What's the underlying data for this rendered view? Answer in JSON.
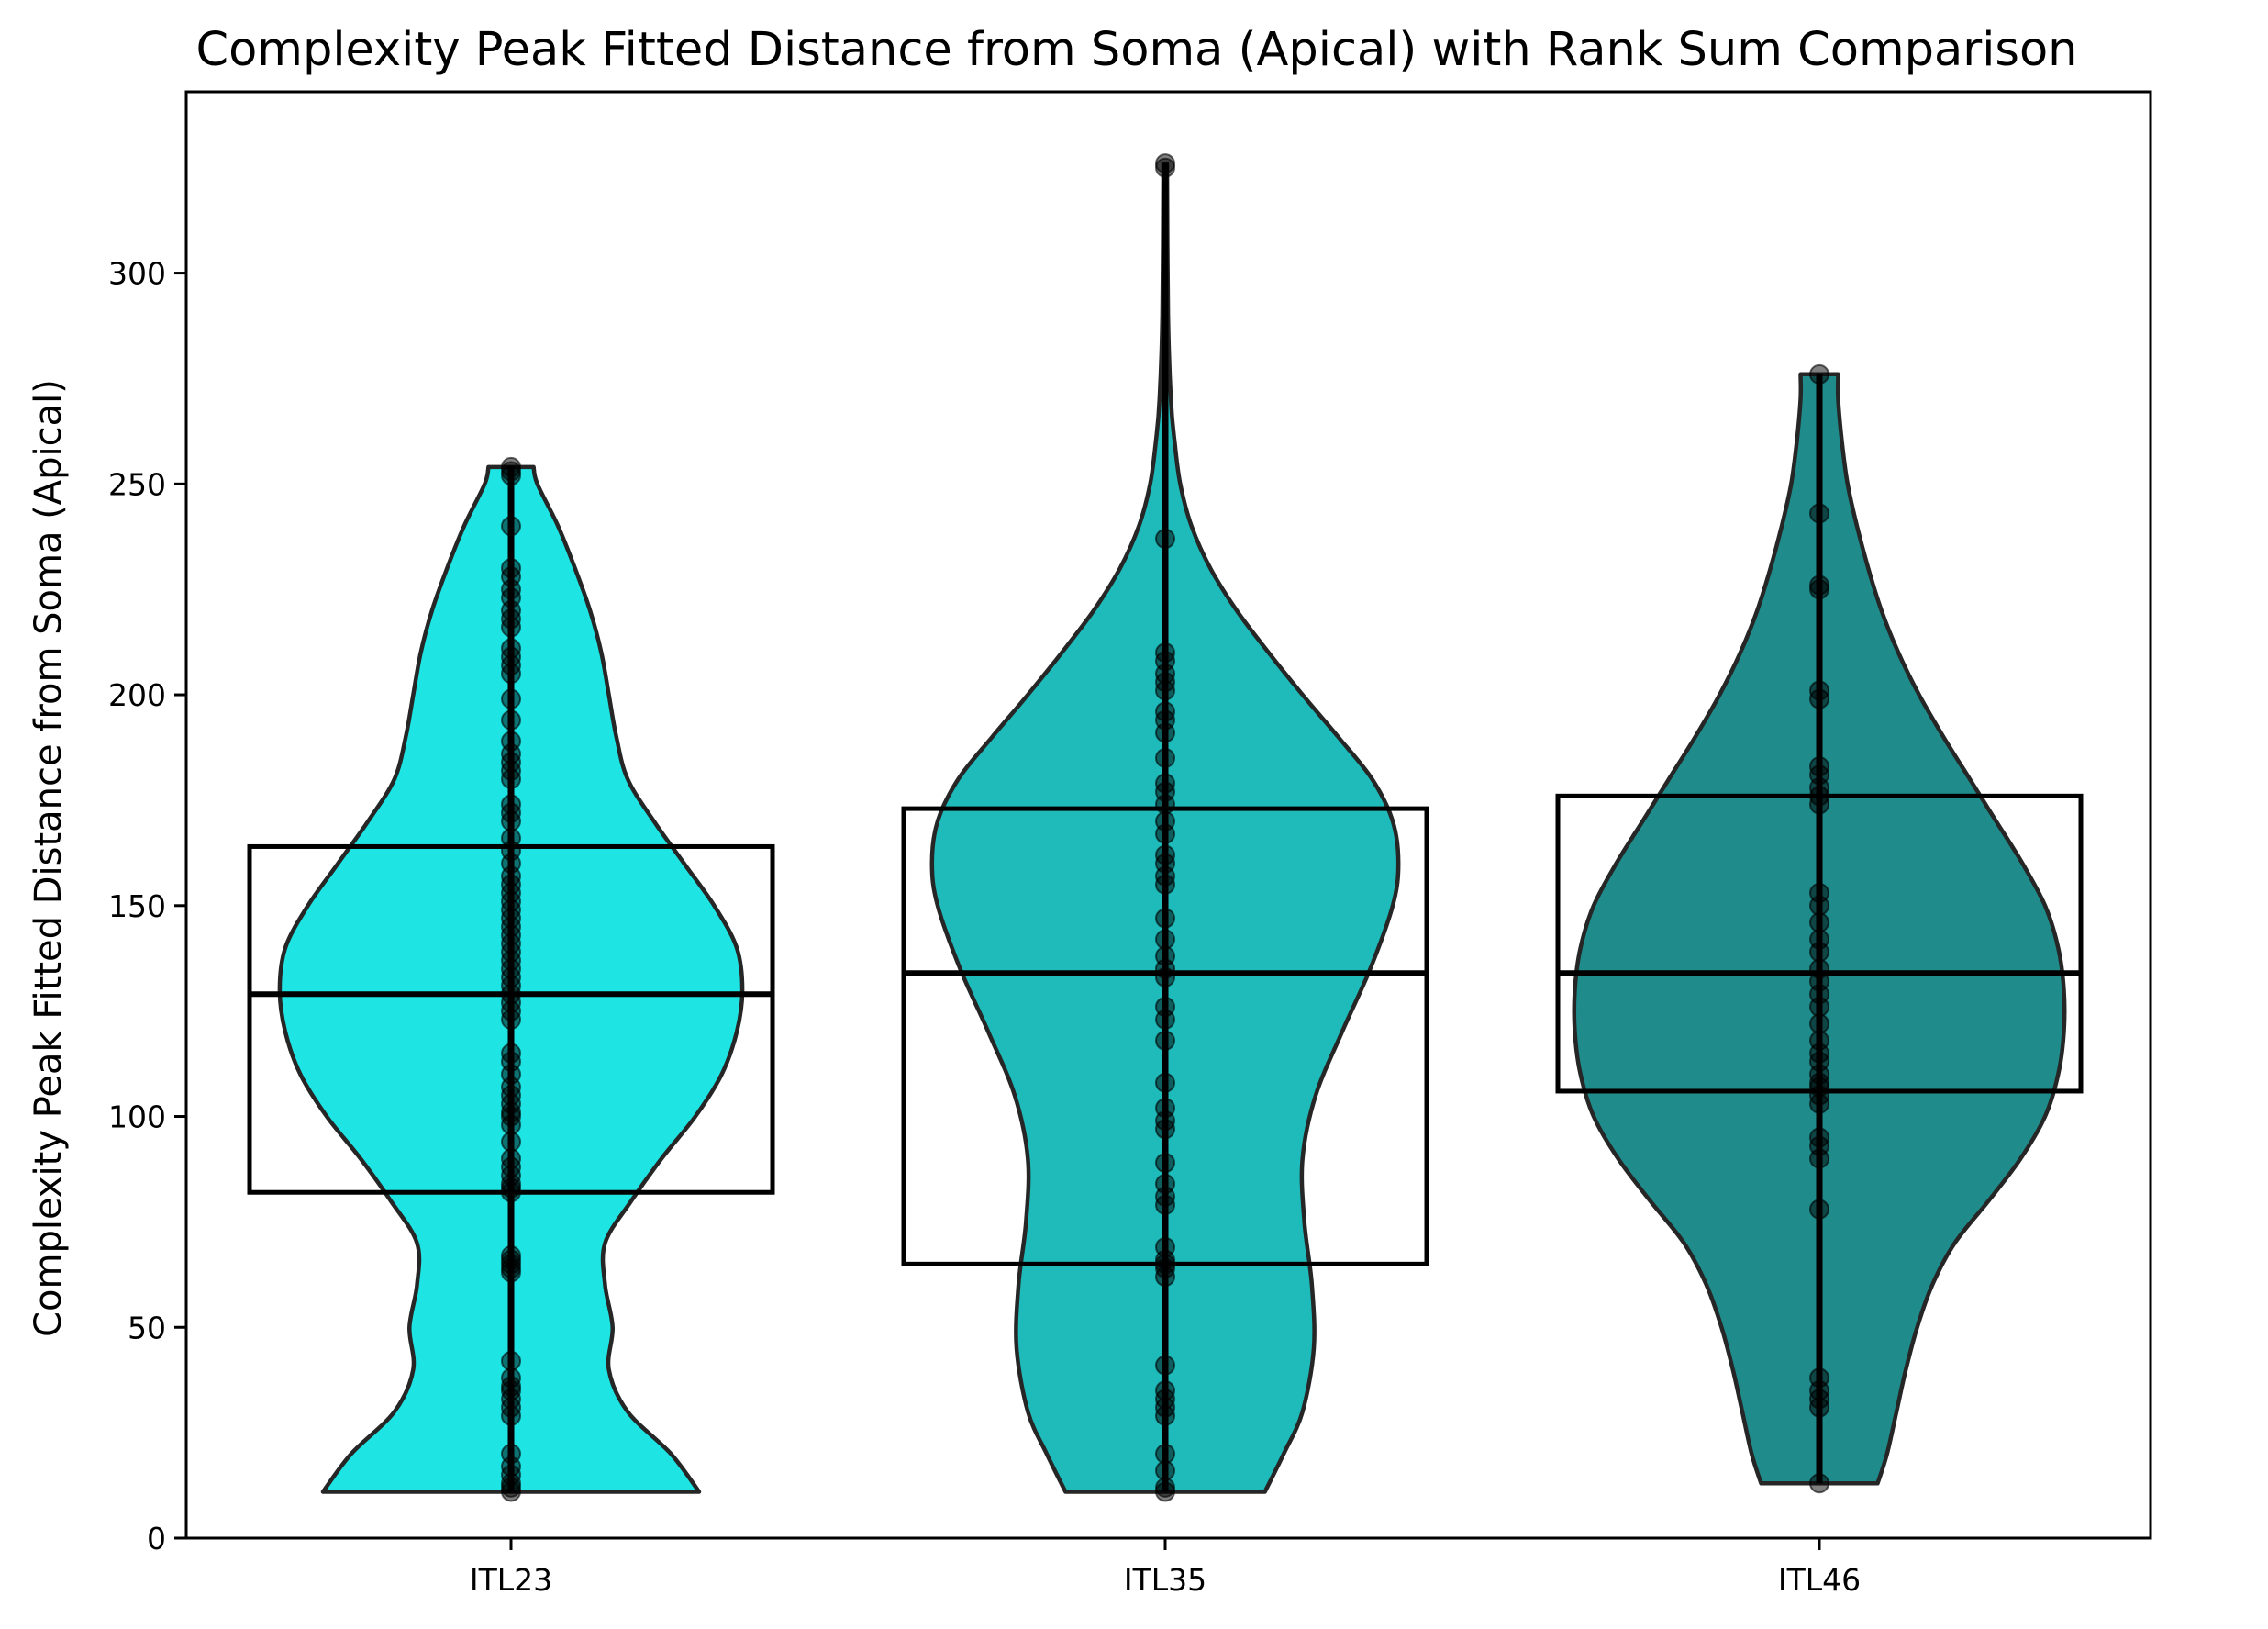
{
  "chart_data": {
    "type": "violin",
    "title": "Complexity Peak Fitted Distance from Soma (Apical) with Rank Sum Comparison",
    "xlabel": "",
    "ylabel": "Complexity Peak Fitted Distance from Soma (Apical)",
    "ylim": [
      0,
      343
    ],
    "yticks": [
      0,
      50,
      100,
      150,
      200,
      250,
      300
    ],
    "categories": [
      "ITL23",
      "ITL35",
      "ITL46"
    ],
    "grid": false,
    "series": [
      {
        "category": "ITL23",
        "color": "#00e0e0",
        "min": 11,
        "max": 254,
        "q1": 82,
        "median": 129,
        "q3": 164,
        "density": [
          [
            11,
            1.0
          ],
          [
            20,
            0.85
          ],
          [
            30,
            0.62
          ],
          [
            40,
            0.52
          ],
          [
            50,
            0.54
          ],
          [
            60,
            0.5
          ],
          [
            70,
            0.5
          ],
          [
            80,
            0.64
          ],
          [
            90,
            0.8
          ],
          [
            100,
            0.98
          ],
          [
            110,
            1.12
          ],
          [
            120,
            1.2
          ],
          [
            130,
            1.23
          ],
          [
            140,
            1.2
          ],
          [
            150,
            1.08
          ],
          [
            160,
            0.92
          ],
          [
            170,
            0.76
          ],
          [
            180,
            0.62
          ],
          [
            190,
            0.56
          ],
          [
            200,
            0.52
          ],
          [
            210,
            0.48
          ],
          [
            220,
            0.42
          ],
          [
            230,
            0.34
          ],
          [
            240,
            0.25
          ],
          [
            250,
            0.14
          ],
          [
            254,
            0.12
          ]
        ],
        "points": [
          11,
          12,
          13,
          15,
          17,
          20,
          29,
          31,
          33,
          35,
          36,
          38,
          42,
          63,
          64,
          65,
          66,
          67,
          82,
          83,
          84,
          86,
          88,
          90,
          94,
          98,
          100,
          101,
          103,
          105,
          107,
          110,
          113,
          115,
          123,
          125,
          127,
          129,
          131,
          133,
          135,
          137,
          139,
          141,
          143,
          145,
          147,
          149,
          151,
          153,
          155,
          157,
          160,
          163,
          166,
          170,
          172,
          174,
          180,
          182,
          184,
          186,
          189,
          194,
          199,
          205,
          207,
          209,
          211,
          216,
          218,
          220,
          223,
          225,
          228,
          230,
          240,
          252,
          253,
          254
        ]
      },
      {
        "category": "ITL35",
        "color": "#00b0b0",
        "min": 11,
        "max": 326,
        "q1": 65,
        "median": 134,
        "q3": 173,
        "density": [
          [
            11,
            0.53
          ],
          [
            20,
            0.63
          ],
          [
            30,
            0.73
          ],
          [
            45,
            0.79
          ],
          [
            60,
            0.78
          ],
          [
            75,
            0.74
          ],
          [
            90,
            0.73
          ],
          [
            105,
            0.8
          ],
          [
            120,
            0.94
          ],
          [
            135,
            1.09
          ],
          [
            150,
            1.21
          ],
          [
            160,
            1.24
          ],
          [
            170,
            1.21
          ],
          [
            180,
            1.1
          ],
          [
            190,
            0.92
          ],
          [
            200,
            0.73
          ],
          [
            210,
            0.55
          ],
          [
            220,
            0.38
          ],
          [
            230,
            0.24
          ],
          [
            240,
            0.14
          ],
          [
            250,
            0.08
          ],
          [
            260,
            0.05
          ],
          [
            270,
            0.03
          ],
          [
            290,
            0.015
          ],
          [
            326,
            0.01
          ]
        ],
        "points": [
          11,
          12,
          16,
          20,
          29,
          31,
          33,
          35,
          41,
          62,
          64,
          65,
          66,
          69,
          79,
          81,
          84,
          89,
          97,
          99,
          102,
          108,
          118,
          123,
          126,
          133,
          135,
          138,
          142,
          147,
          155,
          157,
          160,
          162,
          167,
          170,
          174,
          177,
          179,
          185,
          191,
          194,
          196,
          201,
          203,
          205,
          208,
          210,
          237,
          325,
          326
        ]
      },
      {
        "category": "ITL46",
        "color": "#007b7b",
        "min": 13,
        "max": 276,
        "q1": 106,
        "median": 134,
        "q3": 176,
        "density": [
          [
            13,
            0.31
          ],
          [
            20,
            0.36
          ],
          [
            30,
            0.41
          ],
          [
            40,
            0.46
          ],
          [
            50,
            0.52
          ],
          [
            60,
            0.6
          ],
          [
            70,
            0.72
          ],
          [
            80,
            0.9
          ],
          [
            90,
            1.07
          ],
          [
            100,
            1.2
          ],
          [
            110,
            1.27
          ],
          [
            120,
            1.3
          ],
          [
            130,
            1.3
          ],
          [
            140,
            1.27
          ],
          [
            150,
            1.2
          ],
          [
            160,
            1.08
          ],
          [
            170,
            0.94
          ],
          [
            180,
            0.8
          ],
          [
            190,
            0.66
          ],
          [
            200,
            0.53
          ],
          [
            210,
            0.42
          ],
          [
            220,
            0.33
          ],
          [
            230,
            0.26
          ],
          [
            240,
            0.2
          ],
          [
            250,
            0.15
          ],
          [
            260,
            0.12
          ],
          [
            270,
            0.1
          ],
          [
            276,
            0.1
          ]
        ],
        "points": [
          13,
          31,
          33,
          35,
          38,
          78,
          90,
          93,
          95,
          103,
          105,
          107,
          108,
          110,
          113,
          115,
          118,
          122,
          126,
          129,
          132,
          135,
          139,
          142,
          146,
          150,
          153,
          174,
          176,
          178,
          181,
          183,
          199,
          201,
          225,
          226,
          243,
          276
        ]
      }
    ]
  }
}
